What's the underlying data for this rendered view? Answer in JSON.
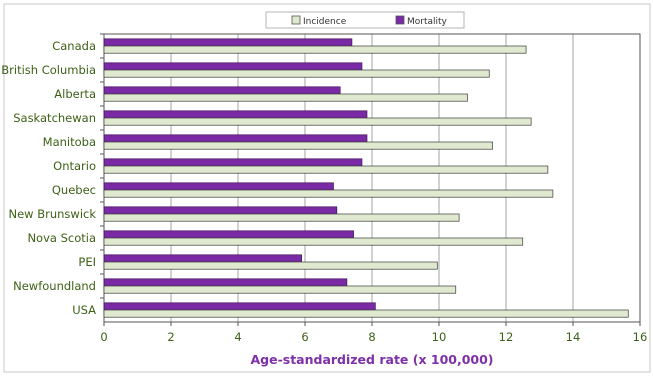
{
  "chart_data": {
    "type": "bar",
    "orientation": "horizontal",
    "categories": [
      "Canada",
      "British Columbia",
      "Alberta",
      "Saskatchewan",
      "Manitoba",
      "Ontario",
      "Quebec",
      "New Brunswick",
      "Nova Scotia",
      "PEI",
      "Newfoundland",
      "USA"
    ],
    "series": [
      {
        "name": "Incidence",
        "color": "#dfe9cf",
        "values": [
          12.6,
          11.5,
          10.85,
          12.75,
          11.6,
          13.25,
          13.4,
          10.6,
          12.5,
          9.95,
          10.5,
          15.65
        ]
      },
      {
        "name": "Mortality",
        "color": "#7b2aa6",
        "values": [
          7.4,
          7.7,
          7.05,
          7.85,
          7.85,
          7.7,
          6.85,
          6.95,
          7.45,
          5.9,
          7.25,
          8.1
        ]
      }
    ],
    "xlabel": "Age-standardized rate (x 100,000)",
    "xlim": [
      0,
      16
    ],
    "xticks": [
      0,
      2,
      4,
      6,
      8,
      10,
      12,
      14,
      16
    ],
    "grid": true,
    "legend_position": "top"
  }
}
